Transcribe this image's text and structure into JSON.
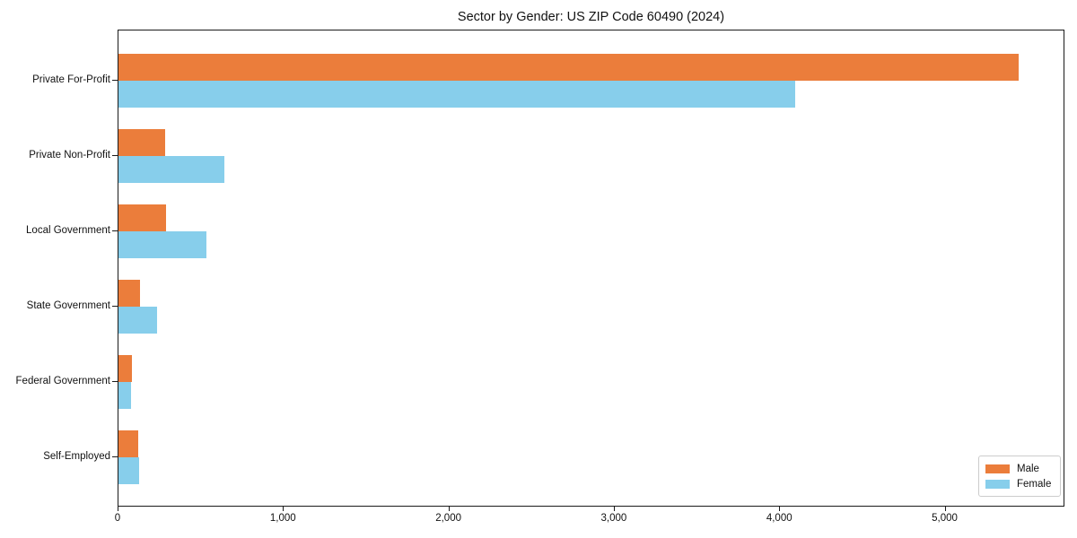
{
  "chart_data": {
    "type": "bar",
    "orientation": "horizontal",
    "title": "Sector by Gender: US ZIP Code 60490 (2024)",
    "categories": [
      "Private For-Profit",
      "Private Non-Profit",
      "Local Government",
      "State Government",
      "Federal Government",
      "Self-Employed"
    ],
    "series": [
      {
        "name": "Male",
        "color": "#EB7D3B",
        "values": [
          5450,
          280,
          290,
          130,
          80,
          120
        ]
      },
      {
        "name": "Female",
        "color": "#87CEEB",
        "values": [
          4100,
          640,
          530,
          235,
          75,
          125
        ]
      }
    ],
    "xlabel": "",
    "ylabel": "",
    "xlim": [
      0,
      5724
    ],
    "x_ticks": [
      0,
      1000,
      2000,
      3000,
      4000,
      5000
    ],
    "x_tick_labels": [
      "0",
      "1,000",
      "2,000",
      "3,000",
      "4,000",
      "5,000"
    ],
    "grid": false,
    "legend": {
      "position": "lower right",
      "entries": [
        "Male",
        "Female"
      ]
    },
    "colors": {
      "spine": "#1a1a1a",
      "legend_border": "#cccccc",
      "background": "#ffffff"
    }
  }
}
